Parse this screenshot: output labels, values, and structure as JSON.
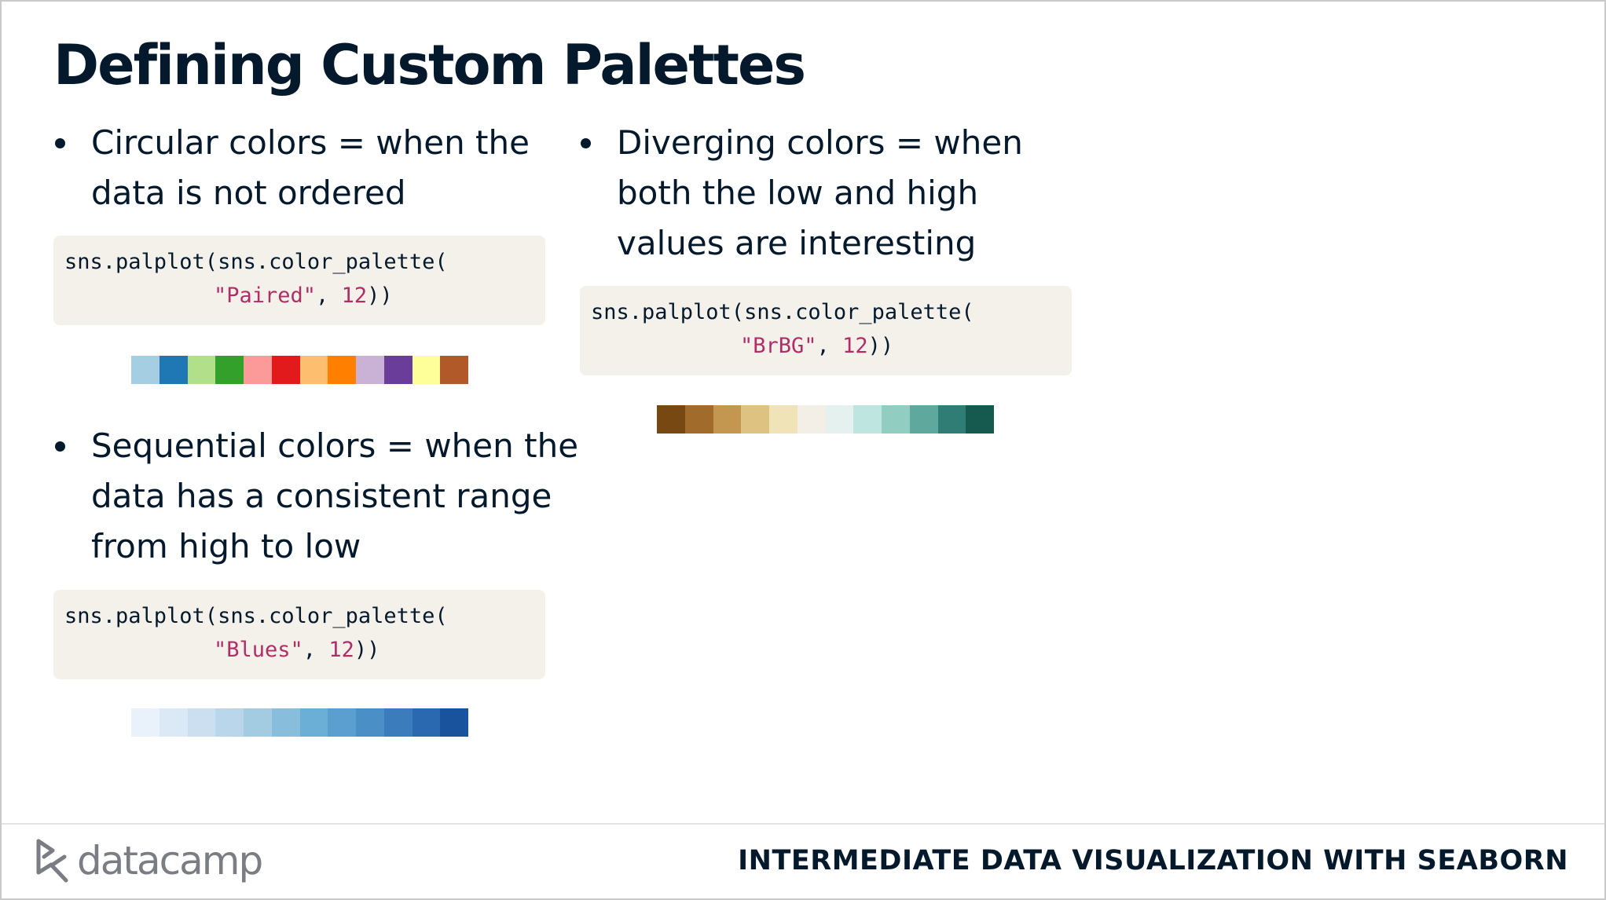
{
  "slide": {
    "title": "Defining Custom Palettes",
    "footer_course": "INTERMEDIATE DATA VISUALIZATION WITH SEABORN",
    "logo_text": "datacamp",
    "logo_icon": "datacamp-logo-icon"
  },
  "sections": {
    "circular": {
      "bullet": "Circular colors = when the\ndata is not ordered",
      "code_line1": "sns.palplot(sns.color_palette(",
      "code_str": "\"Paired\"",
      "code_sep": ", ",
      "code_num": "12",
      "code_end": "))",
      "colors": [
        "#a6cee3",
        "#1f78b4",
        "#b2df8a",
        "#33a02c",
        "#fb9a99",
        "#e31a1c",
        "#fdbf6f",
        "#ff7f00",
        "#cab2d6",
        "#6a3d9a",
        "#ffff99",
        "#b15928"
      ]
    },
    "sequential": {
      "bullet": "Sequential colors = when the\ndata has a consistent range\nfrom high to low",
      "code_line1": "sns.palplot(sns.color_palette(",
      "code_str": "\"Blues\"",
      "code_sep": ", ",
      "code_num": "12",
      "code_end": "))",
      "colors": [
        "#e9f2fb",
        "#dbe9f6",
        "#ccdff1",
        "#bad6eb",
        "#a3cce3",
        "#88bedc",
        "#6baed6",
        "#5a9fcf",
        "#4a8fc6",
        "#3a7cbc",
        "#2a69af",
        "#1a539d"
      ]
    },
    "diverging": {
      "bullet": "Diverging colors = when\nboth the low and high\nvalues are interesting",
      "code_line1": "sns.palplot(sns.color_palette(",
      "code_str": "\"BrBG\"",
      "code_sep": ", ",
      "code_num": "12",
      "code_end": "))",
      "colors": [
        "#774812",
        "#a16b2b",
        "#c3974f",
        "#ddc282",
        "#f0e3b7",
        "#f3efe6",
        "#e5f1ef",
        "#bee5df",
        "#92cdc1",
        "#5ea89d",
        "#2f7d74",
        "#165a4f"
      ]
    }
  }
}
